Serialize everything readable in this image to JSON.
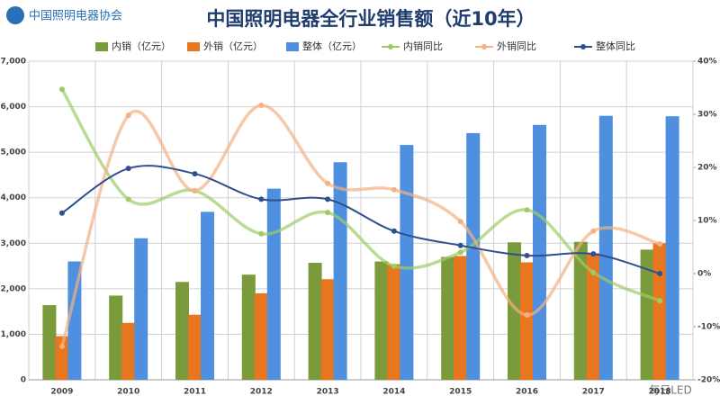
{
  "logo": "中国照明电器协会",
  "watermark": "每日LED",
  "chart_data": {
    "type": "bar",
    "title": "中国照明电器全行业销售额（近10年）",
    "categories": [
      "2009",
      "2010",
      "2011",
      "2012",
      "2013",
      "2014",
      "2015",
      "2016",
      "2017",
      "2018"
    ],
    "series": [
      {
        "name": "内销（亿元）",
        "type": "bar",
        "color": "#7a9a3c",
        "values": [
          1640,
          1850,
          2150,
          2310,
          2570,
          2600,
          2700,
          3020,
          3030,
          2860
        ]
      },
      {
        "name": "外销（亿元）",
        "type": "bar",
        "color": "#e8761f",
        "values": [
          960,
          1250,
          1430,
          1900,
          2210,
          2540,
          2720,
          2580,
          2780,
          3000
        ]
      },
      {
        "name": "整体（亿元）",
        "type": "bar",
        "color": "#4f8fe0",
        "values": [
          2600,
          3110,
          3690,
          4200,
          4780,
          5160,
          5420,
          5600,
          5800,
          5790
        ]
      },
      {
        "name": "内销同比",
        "type": "line",
        "axis": "y2",
        "color": "#9ccc65",
        "values": [
          34.7,
          14,
          15.6,
          7.5,
          11.5,
          1.4,
          4,
          12,
          0.2,
          -5.1
        ]
      },
      {
        "name": "外销同比",
        "type": "line",
        "axis": "y2",
        "color": "#f4b183",
        "values": [
          -13.7,
          29.8,
          15.6,
          31.7,
          17,
          15.8,
          9.8,
          -7.8,
          8,
          5.6
        ]
      },
      {
        "name": "整体同比",
        "type": "line",
        "axis": "y2",
        "color": "#2f4f8f",
        "values": [
          11.4,
          19.8,
          18.8,
          14,
          14,
          8,
          5.3,
          3.4,
          3.7,
          0
        ]
      }
    ],
    "ylim": [
      0,
      7000
    ],
    "yticks": [
      0,
      {
        "value": 1000,
        "label": "1,000"
      },
      {
        "value": 2000,
        "label": "2,000"
      },
      {
        "value": 3000,
        "label": "3,000"
      },
      {
        "value": 4000,
        "label": "4,000"
      },
      {
        "value": 5000,
        "label": "5,000"
      },
      {
        "value": 6000,
        "label": "6,000"
      },
      {
        "value": 7000,
        "label": "7,000"
      }
    ],
    "y2lim": [
      -20,
      40
    ],
    "y2ticks": [
      {
        "value": -20,
        "label": "-20%"
      },
      {
        "value": -10,
        "label": "-10%"
      },
      {
        "value": 0,
        "label": "0%"
      },
      {
        "value": 10,
        "label": "10%"
      },
      {
        "value": 20,
        "label": "20%"
      },
      {
        "value": 30,
        "label": "30%"
      },
      {
        "value": 40,
        "label": "40%"
      }
    ],
    "grid": true
  }
}
